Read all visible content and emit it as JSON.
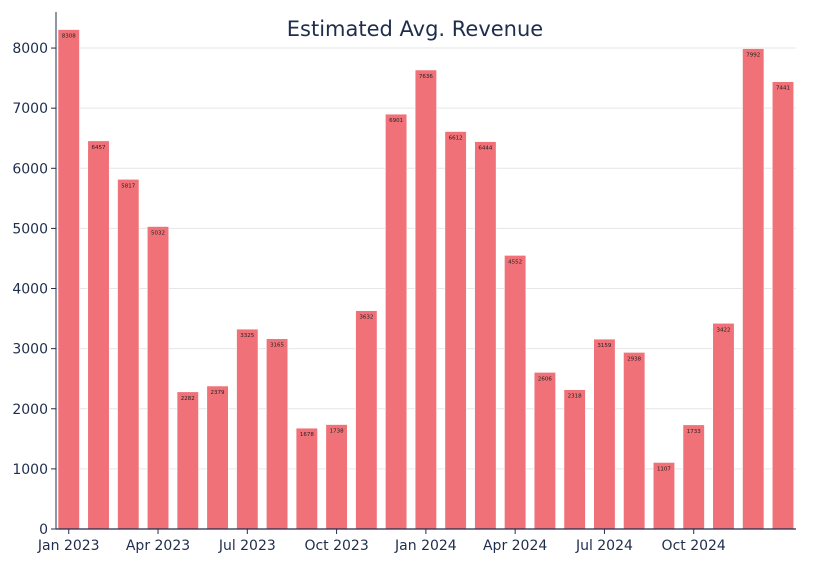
{
  "chart_data": {
    "type": "bar",
    "title": "Estimated Avg. Revenue",
    "xlabel": "",
    "ylabel": "",
    "ylim": [
      0,
      8500
    ],
    "yticks": [
      0,
      1000,
      2000,
      3000,
      4000,
      5000,
      6000,
      7000,
      8000
    ],
    "grid": "horizontal",
    "categories": [
      "2023-01",
      "2023-02",
      "2023-03",
      "2023-04",
      "2023-05",
      "2023-06",
      "2023-07",
      "2023-08",
      "2023-09",
      "2023-10",
      "2023-11",
      "2023-12",
      "2024-01",
      "2024-02",
      "2024-03",
      "2024-04",
      "2024-05",
      "2024-06",
      "2024-07",
      "2024-08",
      "2024-09",
      "2024-10",
      "2024-11",
      "2024-12",
      "2025-01"
    ],
    "values": [
      8308,
      6457,
      5817,
      5032,
      2282,
      2379,
      3325,
      3165,
      1678,
      1738,
      3632,
      6901,
      7636,
      6612,
      6444,
      4552,
      2606,
      2318,
      3159,
      2938,
      1107,
      1733,
      3422,
      7992,
      7441
    ],
    "xtick_labels": [
      {
        "category": "2023-01",
        "label": "Jan 2023"
      },
      {
        "category": "2023-04",
        "label": "Apr 2023"
      },
      {
        "category": "2023-07",
        "label": "Jul 2023"
      },
      {
        "category": "2023-10",
        "label": "Oct 2023"
      },
      {
        "category": "2024-01",
        "label": "Jan 2024"
      },
      {
        "category": "2024-04",
        "label": "Apr 2024"
      },
      {
        "category": "2024-07",
        "label": "Jul 2024"
      },
      {
        "category": "2024-10",
        "label": "Oct 2024"
      }
    ],
    "colors": {
      "bar": "#f07178",
      "bar_edge": "#ffffff",
      "text": "#1f2d4d",
      "grid": "#e6e6e6",
      "axis": "#1f2d4d"
    }
  }
}
